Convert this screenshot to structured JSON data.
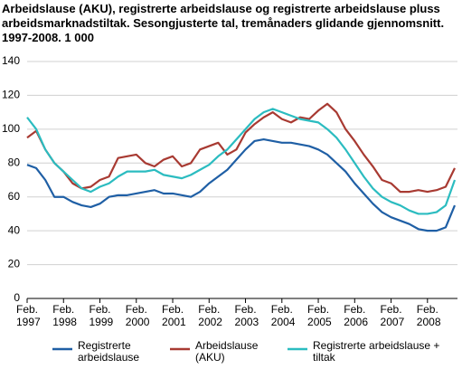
{
  "chart_data": {
    "type": "line",
    "title": "Arbeidslause (AKU), registrerte arbeidslause og registrerte arbeidslause pluss arbeidsmarknadstiltak. Sesongjusterte tal, tremånaders glidande gjennomsnitt. 1997-2008. 1 000",
    "categories": [
      "Feb. 1997",
      null,
      null,
      null,
      "Feb. 1998",
      null,
      null,
      null,
      "Feb. 1999",
      null,
      null,
      null,
      "Feb. 2000",
      null,
      null,
      null,
      "Feb. 2001",
      null,
      null,
      null,
      "Feb. 2002",
      null,
      null,
      null,
      "Feb. 2003",
      null,
      null,
      null,
      "Feb. 2004",
      null,
      null,
      null,
      "Feb. 2005",
      null,
      null,
      null,
      "Feb. 2006",
      null,
      null,
      null,
      "Feb. 2007",
      null,
      null,
      null,
      "Feb. 2008",
      null,
      null,
      null
    ],
    "series": [
      {
        "name": "Registrerte arbeidslause",
        "color": "#1f5fa5",
        "values": [
          79,
          77,
          70,
          60,
          60,
          57,
          55,
          54,
          56,
          60,
          61,
          61,
          62,
          63,
          64,
          62,
          62,
          61,
          60,
          63,
          68,
          72,
          76,
          82,
          88,
          93,
          94,
          93,
          92,
          92,
          91,
          90,
          88,
          85,
          80,
          75,
          68,
          62,
          56,
          51,
          48,
          46,
          44,
          41,
          40,
          40,
          42,
          55
        ]
      },
      {
        "name": "Arbeidslause (AKU)",
        "color": "#a83a32",
        "values": [
          95,
          99,
          88,
          80,
          75,
          68,
          65,
          66,
          70,
          72,
          83,
          84,
          85,
          80,
          78,
          82,
          84,
          78,
          80,
          88,
          90,
          92,
          85,
          88,
          98,
          103,
          107,
          110,
          106,
          104,
          107,
          106,
          111,
          115,
          110,
          100,
          93,
          85,
          78,
          70,
          68,
          63,
          63,
          64,
          63,
          64,
          66,
          77
        ]
      },
      {
        "name": "Registrerte arbeidslause + tiltak",
        "color": "#2bbcc0",
        "values": [
          107,
          100,
          88,
          80,
          75,
          70,
          65,
          63,
          66,
          68,
          72,
          75,
          75,
          75,
          76,
          73,
          72,
          71,
          73,
          76,
          79,
          84,
          88,
          94,
          100,
          106,
          110,
          112,
          110,
          108,
          106,
          105,
          104,
          100,
          95,
          88,
          80,
          72,
          65,
          60,
          57,
          55,
          52,
          50,
          50,
          51,
          55,
          70
        ]
      }
    ],
    "ylim": [
      0,
      140
    ],
    "yticks": [
      0,
      20,
      40,
      60,
      80,
      100,
      120,
      140
    ],
    "grid": true
  }
}
